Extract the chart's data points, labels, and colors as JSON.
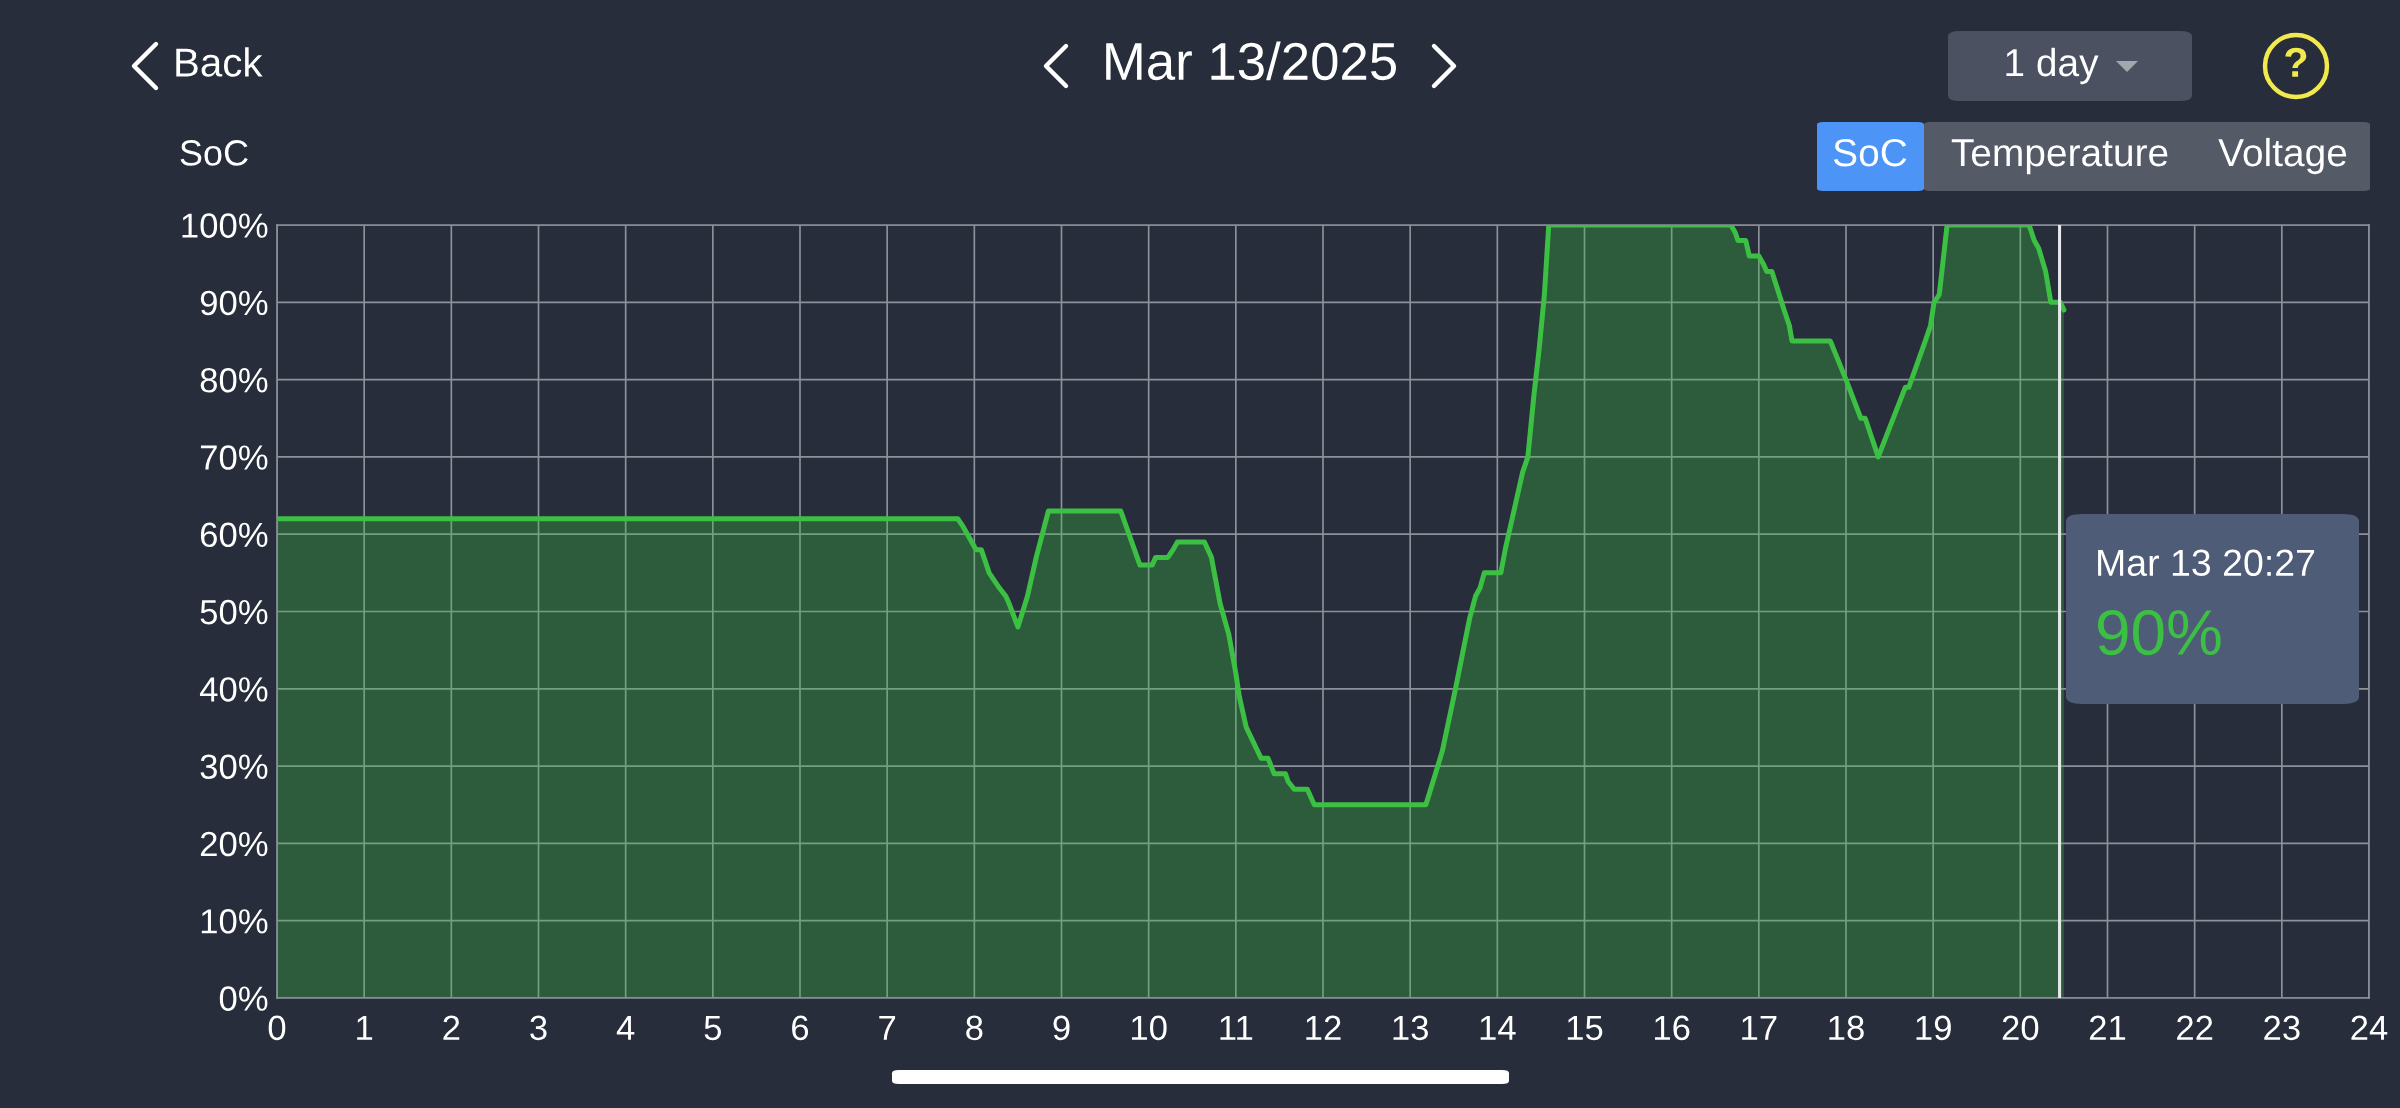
{
  "chart_data": {
    "type": "area",
    "title": "Mar 13/2025",
    "ylabel": "SoC",
    "annotations": [
      "Back",
      "1 day",
      "?",
      "SoC",
      "Temperature",
      "Voltage",
      "Mar 13 20:27",
      "90%"
    ],
    "x": [
      0,
      7.81,
      7.87,
      7.92,
      8.02,
      8.08,
      8.17,
      8.23,
      8.29,
      8.36,
      8.4,
      8.5,
      8.61,
      8.71,
      8.78,
      8.85,
      9.68,
      9.9,
      10.04,
      10.08,
      10.22,
      10.28,
      10.33,
      10.64,
      10.72,
      10.82,
      10.92,
      11.0,
      11.04,
      11.12,
      11.29,
      11.37,
      11.44,
      11.57,
      11.6,
      11.67,
      11.82,
      11.9,
      13.18,
      13.29,
      13.37,
      13.52,
      13.68,
      13.75,
      13.8,
      13.85,
      14.04,
      14.09,
      14.17,
      14.29,
      14.35,
      14.42,
      14.48,
      14.54,
      14.59,
      16.68,
      16.73,
      16.76,
      16.85,
      16.89,
      17.0,
      17.05,
      17.09,
      17.15,
      17.29,
      17.35,
      17.38,
      17.82,
      18.0,
      18.17,
      18.22,
      18.28,
      18.37,
      18.68,
      18.72,
      18.91,
      18.97,
      19.01,
      19.07,
      19.16,
      20.1,
      20.16,
      20.21,
      20.29,
      20.35,
      20.46,
      20.5
    ],
    "series": [
      {
        "color": "#3cc044",
        "values": [
          62,
          62,
          61,
          60,
          58,
          58,
          55,
          54,
          53,
          52,
          51,
          48,
          52,
          57,
          60,
          63,
          63,
          56,
          56,
          57,
          57,
          58,
          59,
          59,
          57,
          51,
          47,
          42,
          39,
          35,
          31,
          31,
          29,
          29,
          28,
          27,
          27,
          25,
          25,
          29,
          32,
          40,
          49,
          52,
          53,
          55,
          55,
          58,
          62,
          68,
          70,
          78,
          84,
          91,
          100,
          100,
          99,
          98,
          98,
          96,
          96,
          95,
          94,
          94,
          89,
          87,
          85,
          85,
          80,
          75,
          75,
          73,
          70,
          79,
          79,
          85,
          87,
          90,
          91,
          100,
          100,
          98,
          97,
          94,
          90,
          90,
          89
        ]
      }
    ],
    "xlim": [
      0,
      24
    ],
    "xticks": [
      0,
      1,
      2,
      3,
      4,
      5,
      6,
      7,
      8,
      9,
      10,
      11,
      12,
      13,
      14,
      15,
      16,
      17,
      18,
      19,
      20,
      21,
      22,
      23,
      24
    ],
    "ylim": [
      0,
      100
    ],
    "yticks": [
      {
        "value": 0,
        "label": "0%"
      },
      {
        "value": 10,
        "label": "10%"
      },
      {
        "value": 20,
        "label": "20%"
      },
      {
        "value": 30,
        "label": "30%"
      },
      {
        "value": 40,
        "label": "40%"
      },
      {
        "value": 50,
        "label": "50%"
      },
      {
        "value": 60,
        "label": "60%"
      },
      {
        "value": 70,
        "label": "70%"
      },
      {
        "value": 80,
        "label": "80%"
      },
      {
        "value": 90,
        "label": "90%"
      },
      {
        "value": 100,
        "label": "100%"
      }
    ],
    "grid": true,
    "line_style": "solid",
    "ref_lines": [
      {
        "axis": "x",
        "value": 20.45,
        "color": "#e6e8ec"
      }
    ]
  }
}
